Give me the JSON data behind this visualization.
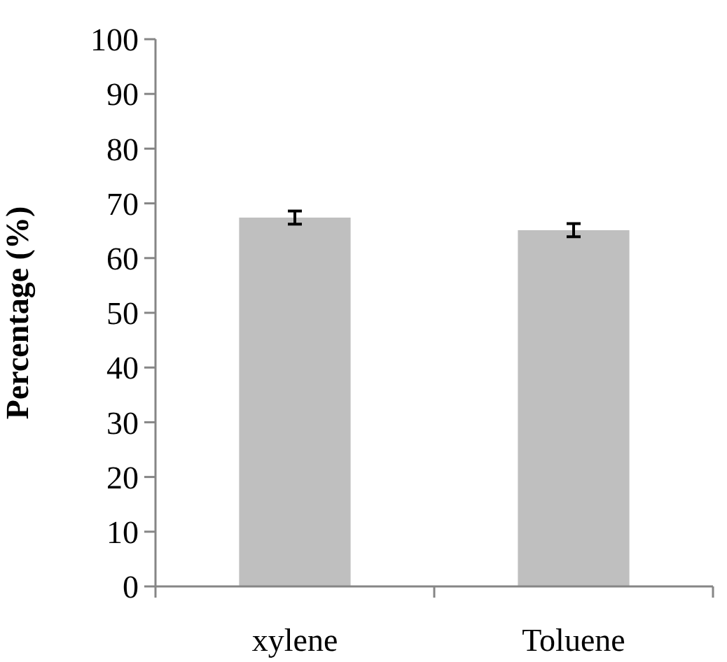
{
  "chart_data": {
    "type": "bar",
    "ylabel": "Percentage (%)",
    "categories": [
      "xylene",
      "Toluene"
    ],
    "values": [
      67.4,
      65.1
    ],
    "errors": [
      1.2,
      1.2
    ],
    "color": "#bfbfbf",
    "ylim": [
      0,
      100
    ],
    "yticks": [
      0,
      10,
      20,
      30,
      40,
      50,
      60,
      70,
      80,
      90,
      100
    ]
  }
}
